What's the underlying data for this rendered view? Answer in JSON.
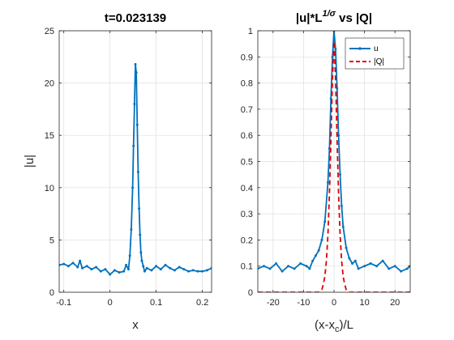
{
  "colors": {
    "blue": "#0072BD",
    "red": "#E00000",
    "axis": "#262626",
    "grid": "#DFDFDF"
  },
  "chart_data": [
    {
      "type": "line",
      "title": "t=0.023139",
      "xlabel": "x",
      "ylabel": "|u|",
      "xlim": [
        -0.11,
        0.22
      ],
      "ylim": [
        0,
        25
      ],
      "xticks": [
        -0.1,
        0,
        0.1,
        0.2
      ],
      "xtick_labels": [
        "-0.1",
        "0",
        "0.1",
        "0.2"
      ],
      "yticks": [
        0,
        5,
        10,
        15,
        20,
        25
      ],
      "ytick_labels": [
        "0",
        "5",
        "10",
        "15",
        "20",
        "25"
      ],
      "grid": true,
      "series": [
        {
          "marker": "dot",
          "x": [
            -0.11,
            -0.1,
            -0.09,
            -0.08,
            -0.07,
            -0.065,
            -0.06,
            -0.05,
            -0.04,
            -0.03,
            -0.02,
            -0.01,
            0,
            0.01,
            0.02,
            0.03,
            0.035,
            0.04,
            0.043,
            0.046,
            0.049,
            0.051,
            0.053,
            0.055,
            0.057,
            0.059,
            0.061,
            0.063,
            0.065,
            0.067,
            0.069,
            0.072,
            0.075,
            0.08,
            0.09,
            0.1,
            0.11,
            0.12,
            0.13,
            0.14,
            0.15,
            0.16,
            0.17,
            0.18,
            0.19,
            0.2,
            0.21,
            0.22
          ],
          "y": [
            2.6,
            2.7,
            2.5,
            2.8,
            2.4,
            3.0,
            2.3,
            2.5,
            2.2,
            2.4,
            2.0,
            2.2,
            1.7,
            2.1,
            1.9,
            2.0,
            2.6,
            2.2,
            3.5,
            6.0,
            10.0,
            14.0,
            18.0,
            21.8,
            21.0,
            16.0,
            11.5,
            8.0,
            5.5,
            3.8,
            3.0,
            2.5,
            2.0,
            2.3,
            2.1,
            2.5,
            2.2,
            2.6,
            2.3,
            2.1,
            2.4,
            2.2,
            2.0,
            2.1,
            2.0,
            2.0,
            2.1,
            2.3
          ]
        }
      ]
    },
    {
      "type": "line",
      "title": "|u|*L",
      "title_sup": "1/σ",
      "title_suffix": " vs |Q|",
      "xlabel": "(x-x",
      "xlabel_sub": "c",
      "xlabel_suffix": ")/L",
      "xlim": [
        -25,
        25
      ],
      "ylim": [
        0,
        1
      ],
      "xticks": [
        -20,
        -10,
        0,
        10,
        20
      ],
      "xtick_labels": [
        "-20",
        "-10",
        "0",
        "10",
        "20"
      ],
      "yticks": [
        0,
        0.1,
        0.2,
        0.3,
        0.4,
        0.5,
        0.6,
        0.7,
        0.8,
        0.9,
        1
      ],
      "ytick_labels": [
        "0",
        "0.1",
        "0.2",
        "0.3",
        "0.4",
        "0.5",
        "0.6",
        "0.7",
        "0.8",
        "0.9",
        "1"
      ],
      "grid": true,
      "legend": "top-right",
      "series": [
        {
          "name": "u",
          "marker": "dot",
          "x": [
            -25,
            -23,
            -21,
            -19,
            -17,
            -15,
            -13,
            -11,
            -9,
            -8,
            -7,
            -6,
            -5,
            -4,
            -3,
            -2,
            -1.5,
            -1,
            -0.5,
            0,
            0.5,
            1,
            1.5,
            2,
            2.5,
            3,
            4,
            5,
            6,
            7,
            8,
            10,
            12,
            14,
            16,
            18,
            20,
            22,
            24,
            25
          ],
          "y": [
            0.09,
            0.1,
            0.09,
            0.11,
            0.08,
            0.1,
            0.09,
            0.11,
            0.1,
            0.09,
            0.12,
            0.14,
            0.16,
            0.2,
            0.27,
            0.42,
            0.55,
            0.74,
            0.9,
            1.0,
            0.93,
            0.78,
            0.6,
            0.45,
            0.33,
            0.25,
            0.17,
            0.13,
            0.11,
            0.12,
            0.09,
            0.1,
            0.11,
            0.1,
            0.12,
            0.09,
            0.1,
            0.08,
            0.09,
            0.1
          ]
        },
        {
          "name": "|Q|",
          "style": "dashed",
          "x": [
            -25,
            -10,
            -5,
            -4,
            -3.5,
            -3,
            -2.5,
            -2,
            -1.5,
            -1,
            -0.5,
            0,
            0.5,
            1,
            1.5,
            2,
            2.5,
            3,
            3.5,
            4,
            5,
            10,
            25
          ],
          "y": [
            0,
            0,
            0.0,
            0.01,
            0.03,
            0.06,
            0.12,
            0.22,
            0.38,
            0.58,
            0.82,
            0.96,
            0.82,
            0.58,
            0.38,
            0.22,
            0.12,
            0.06,
            0.03,
            0.01,
            0.0,
            0,
            0
          ]
        }
      ]
    }
  ]
}
